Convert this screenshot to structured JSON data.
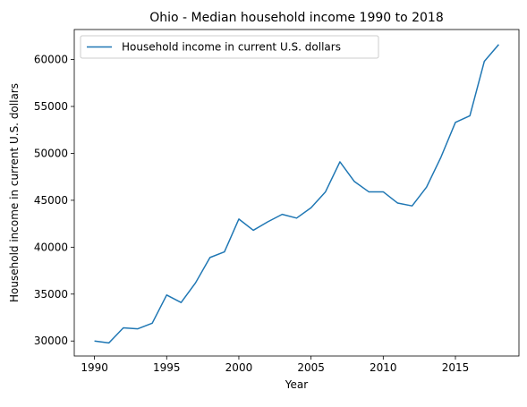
{
  "chart_data": {
    "type": "line",
    "title": "Ohio - Median household income 1990 to 2018",
    "xlabel": "Year",
    "ylabel": "Household income in current U.S. dollars",
    "xlim": [
      1988.6,
      2019.4
    ],
    "ylim": [
      28400,
      63200
    ],
    "xticks": [
      1990,
      1995,
      2000,
      2005,
      2010,
      2015
    ],
    "yticks": [
      30000,
      35000,
      40000,
      45000,
      50000,
      55000,
      60000
    ],
    "grid": false,
    "legend_position": "upper left",
    "series": [
      {
        "name": "Household income in current U.S. dollars",
        "color": "#1f77b4",
        "x": [
          1990,
          1991,
          1992,
          1993,
          1994,
          1995,
          1996,
          1997,
          1998,
          1999,
          2000,
          2001,
          2002,
          2003,
          2004,
          2005,
          2006,
          2007,
          2008,
          2009,
          2010,
          2011,
          2012,
          2013,
          2014,
          2015,
          2016,
          2017,
          2018
        ],
        "y": [
          30000,
          29800,
          31400,
          31300,
          31900,
          34900,
          34100,
          36200,
          38900,
          39500,
          43000,
          41800,
          42700,
          43500,
          43100,
          44200,
          45900,
          49100,
          47000,
          45900,
          45900,
          44700,
          44400,
          46400,
          49600,
          53300,
          54000,
          59800,
          61600
        ]
      }
    ]
  }
}
